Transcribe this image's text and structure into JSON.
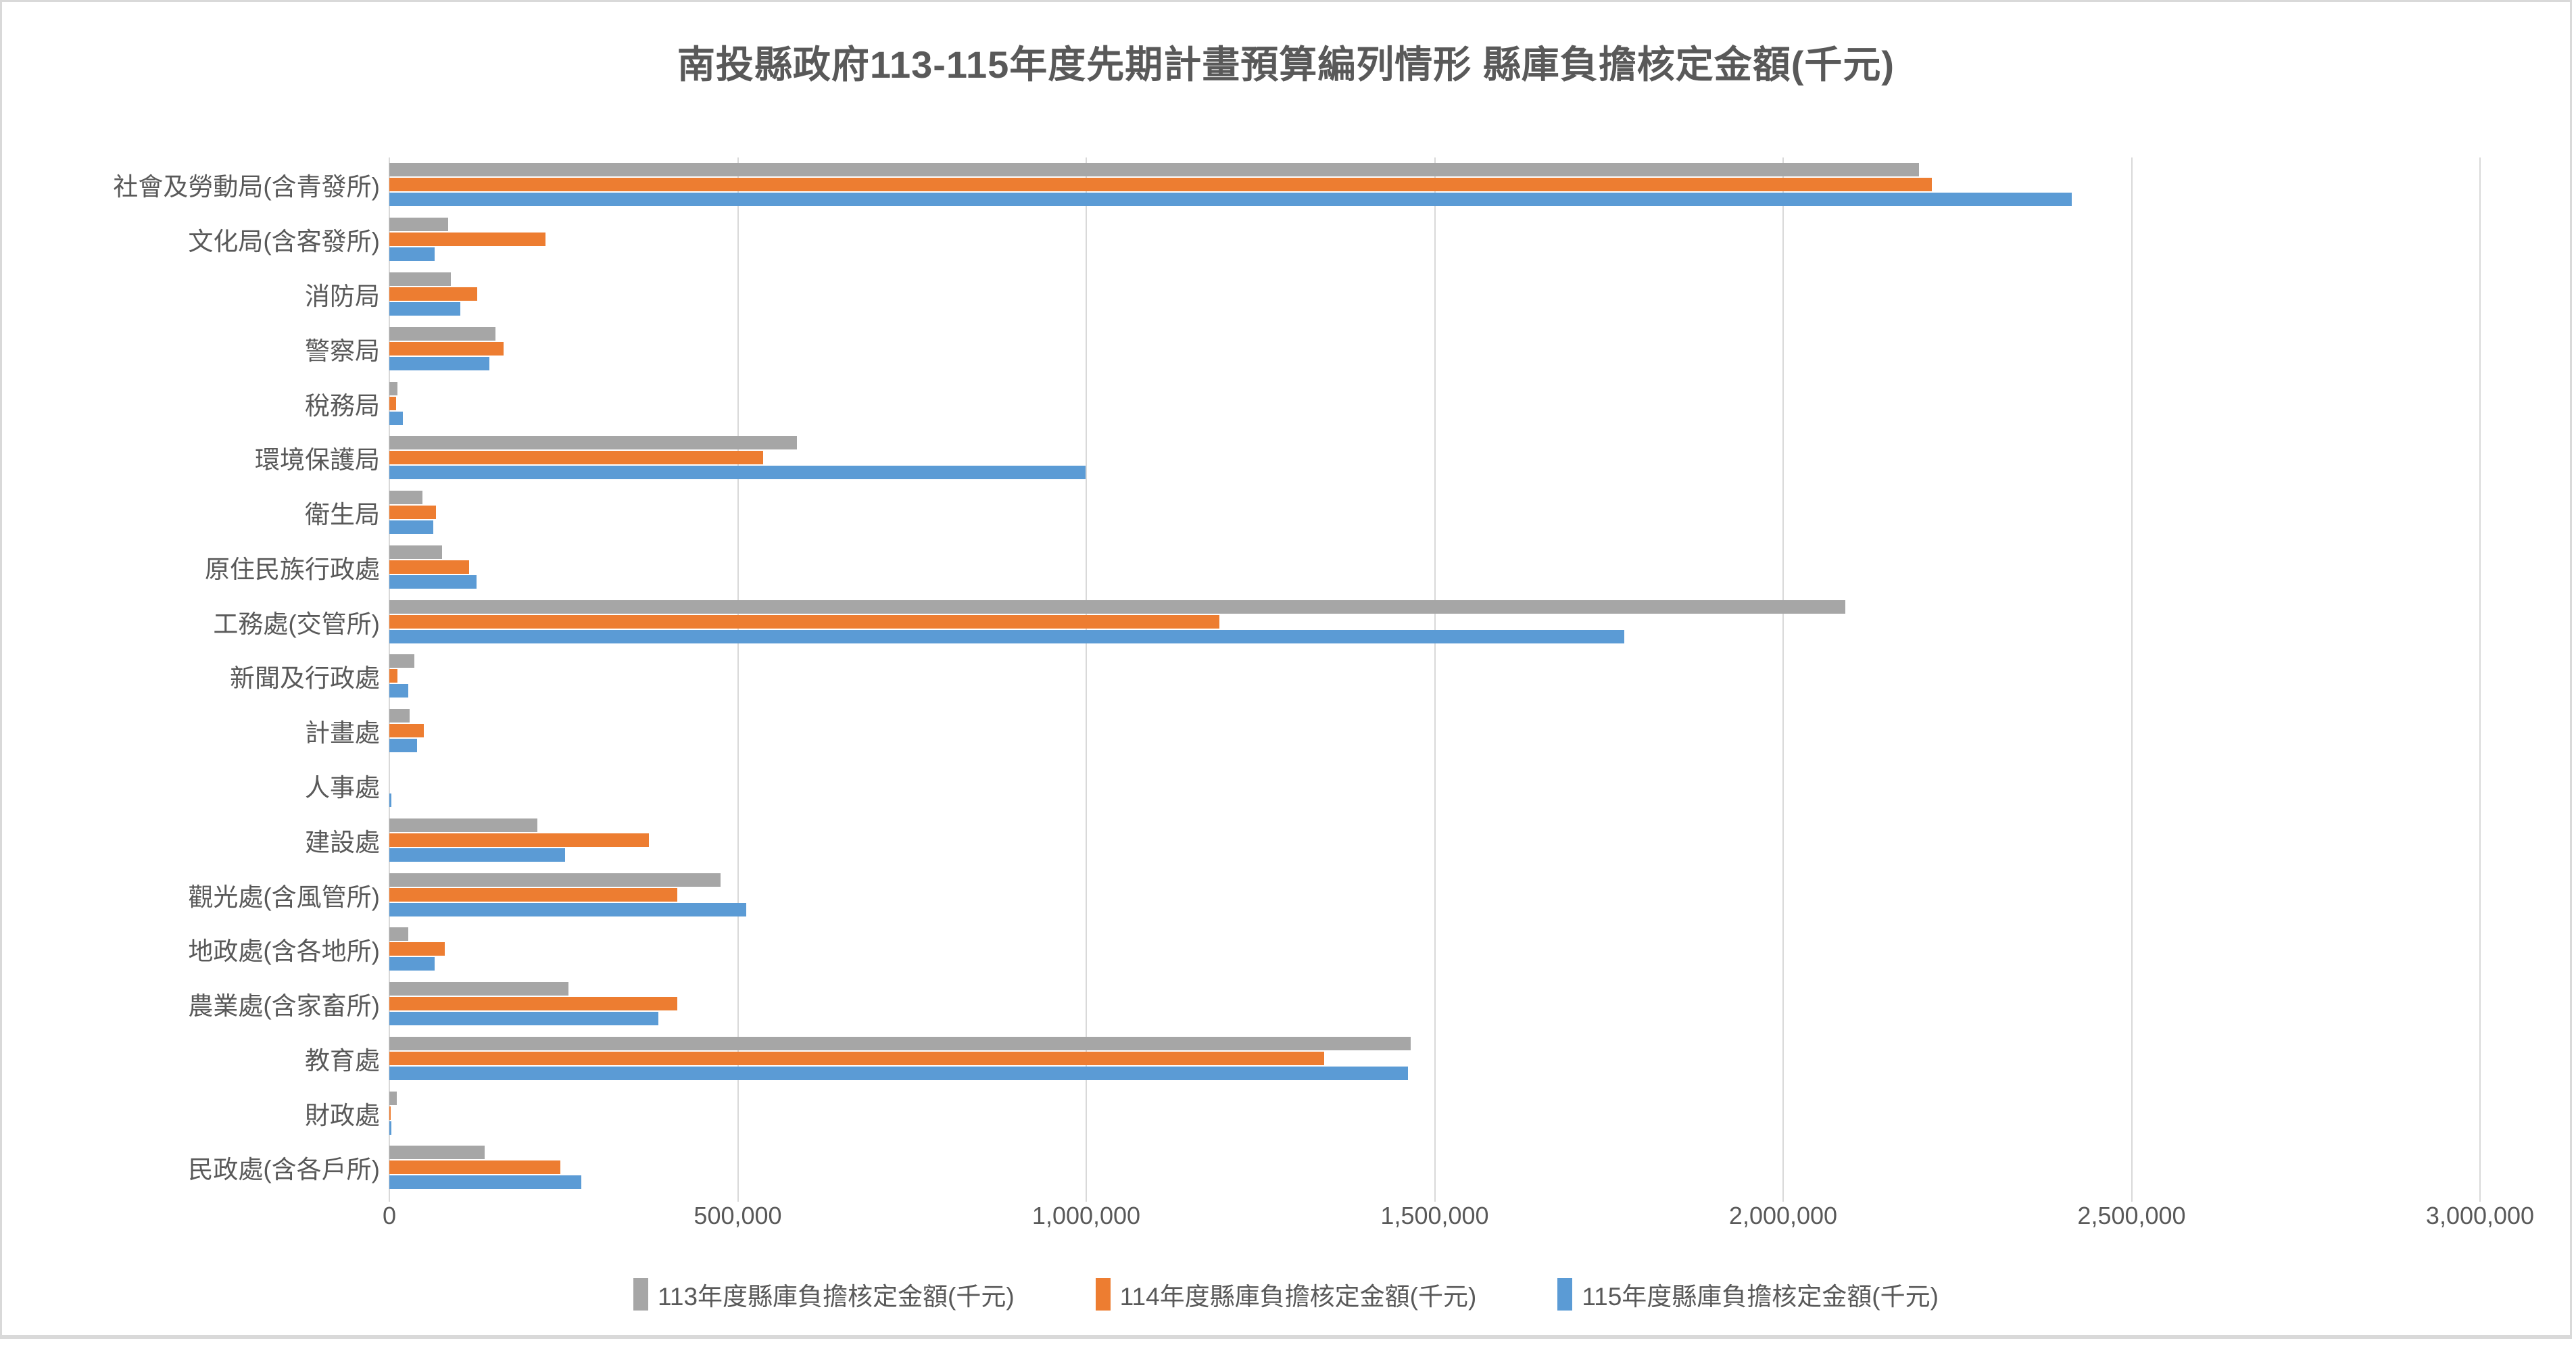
{
  "title": "南投縣政府113-115年度先期計畫預算編列情形 縣庫負擔核定金額(千元)",
  "colors": {
    "series_113": "#A6A6A6",
    "series_114": "#ED7D31",
    "series_115": "#5B9BD5",
    "text": "#595959",
    "gridline": "#D9D9D9",
    "background": "#FFFFFF"
  },
  "chart_data": {
    "type": "bar",
    "orientation": "horizontal",
    "title": "南投縣政府113-115年度先期計畫預算編列情形 縣庫負擔核定金額(千元)",
    "xlabel": "",
    "ylabel": "",
    "xlim": [
      0,
      3000000
    ],
    "grid": "vertical",
    "legend_position": "bottom",
    "x_ticks": [
      0,
      500000,
      1000000,
      1500000,
      2000000,
      2500000,
      3000000
    ],
    "x_tick_labels": [
      "0",
      "500,000",
      "1,000,000",
      "1,500,000",
      "2,000,000",
      "2,500,000",
      "3,000,000"
    ],
    "categories": [
      "社會及勞動局(含青發所)",
      "文化局(含客發所)",
      "消防局",
      "警察局",
      "稅務局",
      "環境保護局",
      "衛生局",
      "原住民族行政處",
      "工務處(交管所)",
      "新聞及行政處",
      "計畫處",
      "人事處",
      "建設處",
      "觀光處(含風管所)",
      "地政處(含各地所)",
      "農業處(含家畜所)",
      "教育處",
      "財政處",
      "民政處(含各戶所)"
    ],
    "series": [
      {
        "name": "113年度縣庫負擔核定金額(千元)",
        "color": "#A6A6A6",
        "values": [
          2192000,
          84000,
          88000,
          152000,
          12000,
          584000,
          47000,
          76000,
          2087000,
          36000,
          29000,
          0,
          212000,
          475000,
          27000,
          257000,
          1464000,
          11000,
          137000
        ]
      },
      {
        "name": "114年度縣庫負擔核定金額(千元)",
        "color": "#ED7D31",
        "values": [
          2211000,
          224000,
          126000,
          164000,
          10000,
          536000,
          67000,
          114000,
          1190000,
          12000,
          49000,
          0,
          372000,
          413000,
          79000,
          413000,
          1340000,
          2000,
          245000
        ]
      },
      {
        "name": "115年度縣庫負擔核定金額(千元)",
        "color": "#5B9BD5",
        "values": [
          2411000,
          65000,
          102000,
          143000,
          19000,
          998000,
          63000,
          125000,
          1770000,
          27000,
          40000,
          3000,
          252000,
          511000,
          65000,
          386000,
          1460000,
          3000,
          275000
        ]
      }
    ]
  }
}
